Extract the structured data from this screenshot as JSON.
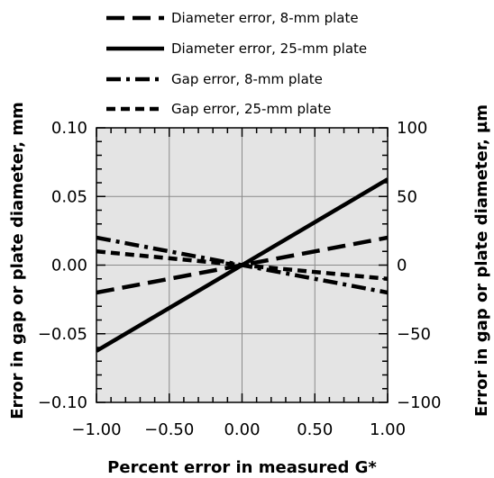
{
  "chart_data": {
    "type": "line",
    "title": "",
    "xlabel": "Percent error in measured G*",
    "ylabel_left": "Error in gap or plate diameter, mm",
    "ylabel_right": "Error in gap or plate diameter, µm",
    "xlim": [
      -1.0,
      1.0
    ],
    "ylim_left": [
      -0.1,
      0.1
    ],
    "ylim_right": [
      -100,
      100
    ],
    "x_ticks": [
      -1.0,
      -0.5,
      0.0,
      0.5,
      1.0
    ],
    "x_tick_labels": [
      "−1.00",
      "−0.50",
      "0.00",
      "0.50",
      "1.00"
    ],
    "y_left_ticks": [
      -0.1,
      -0.05,
      0.0,
      0.05,
      0.1
    ],
    "y_left_tick_labels": [
      "−0.10",
      "−0.05",
      "0.00",
      "0.05",
      "0.10"
    ],
    "y_right_ticks": [
      -100,
      -50,
      0,
      50,
      100
    ],
    "y_right_tick_labels": [
      "−100",
      "−50",
      "0",
      "50",
      "100"
    ],
    "grid": true,
    "legend_position": "top",
    "series": [
      {
        "name": "Diameter error, 8-mm plate",
        "axis": "left",
        "style": "dashed",
        "x": [
          -1.0,
          1.0
        ],
        "y": [
          -0.02,
          0.02
        ]
      },
      {
        "name": "Diameter error, 25-mm plate",
        "axis": "left",
        "style": "solid",
        "x": [
          -1.0,
          1.0
        ],
        "y": [
          -0.0625,
          0.0625
        ]
      },
      {
        "name": "Gap error, 8-mm plate",
        "axis": "left",
        "style": "dash-dot",
        "x": [
          -1.0,
          1.0
        ],
        "y": [
          0.02,
          -0.02
        ]
      },
      {
        "name": "Gap error, 25-mm plate",
        "axis": "left",
        "style": "short-dash",
        "x": [
          -1.0,
          1.0
        ],
        "y": [
          0.01,
          -0.01
        ]
      }
    ],
    "colors": {
      "plot_background": "#e4e4e4",
      "grid": "#8a8a8a",
      "line": "#000000"
    }
  }
}
